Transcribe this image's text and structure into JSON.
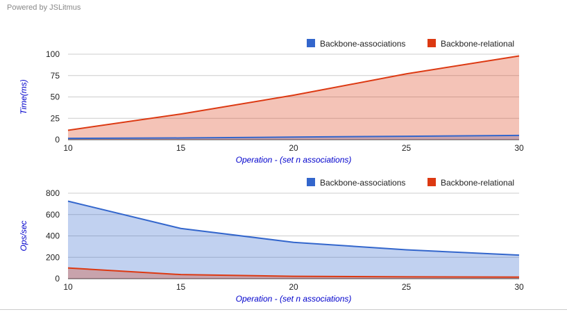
{
  "header": {
    "powered_by": "Powered by JSLitmus"
  },
  "colors": {
    "associations": "#3366cc",
    "relational": "#dc3912"
  },
  "chart_data": [
    {
      "type": "area",
      "title": "",
      "xlabel": "Operation - (set n associations)",
      "ylabel": "Time(ms)",
      "x": [
        10,
        15,
        20,
        25,
        30
      ],
      "xticks": [
        "10",
        "15",
        "20",
        "25",
        "30"
      ],
      "xlim": [
        10,
        30
      ],
      "ylim": [
        0,
        100
      ],
      "yticks": [
        "0",
        "25",
        "50",
        "75",
        "100"
      ],
      "grid": true,
      "legend": "top-right",
      "series": [
        {
          "name": "Backbone-associations",
          "values": [
            1.5,
            2,
            3,
            4,
            5
          ],
          "color": "#3366cc"
        },
        {
          "name": "Backbone-relational",
          "values": [
            11,
            30,
            52,
            77,
            98
          ],
          "color": "#dc3912"
        }
      ]
    },
    {
      "type": "area",
      "title": "",
      "xlabel": "Operation - (set n associations)",
      "ylabel": "Ops/sec",
      "x": [
        10,
        15,
        20,
        25,
        30
      ],
      "xticks": [
        "10",
        "15",
        "20",
        "25",
        "30"
      ],
      "xlim": [
        10,
        30
      ],
      "ylim": [
        0,
        800
      ],
      "yticks": [
        "0",
        "200",
        "400",
        "600",
        "800"
      ],
      "grid": true,
      "legend": "top-right",
      "series": [
        {
          "name": "Backbone-associations",
          "values": [
            725,
            470,
            340,
            270,
            220
          ],
          "color": "#3366cc"
        },
        {
          "name": "Backbone-relational",
          "values": [
            100,
            38,
            22,
            17,
            15
          ],
          "color": "#dc3912"
        }
      ]
    }
  ]
}
